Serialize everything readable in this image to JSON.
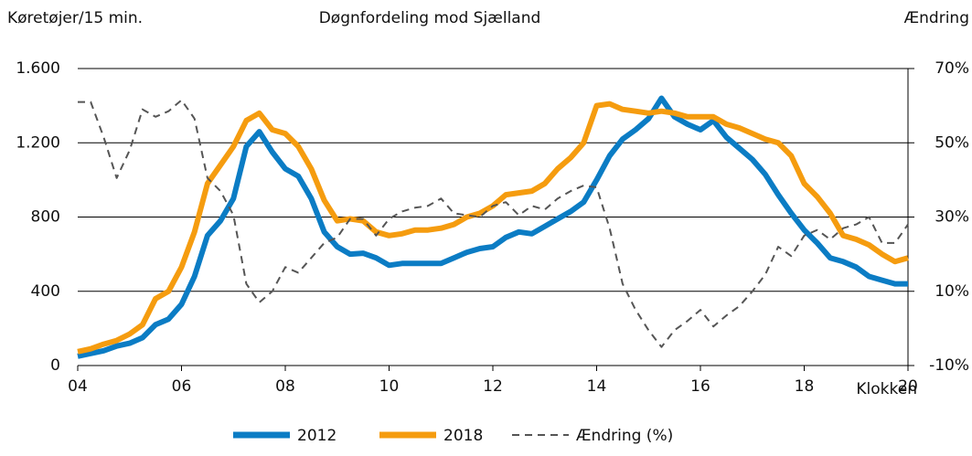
{
  "chart_data": {
    "type": "line",
    "title": "Døgnfordeling mod Sjælland",
    "ylabel": "Køretøjer/15 min.",
    "y2label": "Ændring",
    "xlabel": "Klokken",
    "x": [
      4,
      4.25,
      4.5,
      4.75,
      5,
      5.25,
      5.5,
      5.75,
      6,
      6.25,
      6.5,
      6.75,
      7,
      7.25,
      7.5,
      7.75,
      8,
      8.25,
      8.5,
      8.75,
      9,
      9.25,
      9.5,
      9.75,
      10,
      10.25,
      10.5,
      10.75,
      11,
      11.25,
      11.5,
      11.75,
      12,
      12.25,
      12.5,
      12.75,
      13,
      13.25,
      13.5,
      13.75,
      14,
      14.25,
      14.5,
      14.75,
      15,
      15.25,
      15.5,
      15.75,
      16,
      16.25,
      16.5,
      16.75,
      17,
      17.25,
      17.5,
      17.75,
      18,
      18.25,
      18.5,
      18.75,
      19,
      19.25,
      19.5,
      19.75,
      20
    ],
    "series": [
      {
        "name": "2012",
        "color": "#0b7cc4",
        "style": "solid",
        "values": [
          50,
          65,
          80,
          105,
          120,
          150,
          220,
          250,
          330,
          480,
          700,
          780,
          900,
          1180,
          1260,
          1150,
          1060,
          1020,
          900,
          720,
          640,
          600,
          605,
          580,
          540,
          550,
          550,
          550,
          550,
          580,
          610,
          630,
          640,
          690,
          720,
          710,
          750,
          790,
          830,
          880,
          1000,
          1130,
          1220,
          1270,
          1330,
          1440,
          1340,
          1300,
          1270,
          1320,
          1230,
          1170,
          1110,
          1030,
          920,
          820,
          730,
          660,
          580,
          560,
          530,
          480,
          460,
          440,
          440
        ]
      },
      {
        "name": "2018",
        "color": "#f59c0f",
        "style": "solid",
        "values": [
          75,
          90,
          115,
          135,
          170,
          220,
          360,
          400,
          530,
          720,
          980,
          1080,
          1180,
          1320,
          1360,
          1270,
          1250,
          1180,
          1060,
          890,
          780,
          790,
          780,
          720,
          700,
          710,
          730,
          730,
          740,
          760,
          800,
          820,
          860,
          920,
          930,
          940,
          980,
          1060,
          1120,
          1200,
          1400,
          1410,
          1380,
          1370,
          1360,
          1370,
          1360,
          1340,
          1340,
          1340,
          1300,
          1280,
          1250,
          1220,
          1200,
          1130,
          980,
          910,
          820,
          700,
          680,
          650,
          600,
          560,
          580
        ]
      },
      {
        "name": "Ændring (%)",
        "color": "#555555",
        "style": "dashed",
        "axis": "y2",
        "values": [
          61,
          61,
          51.5,
          40.5,
          48,
          59,
          57,
          58.5,
          61.5,
          56.5,
          40.5,
          37,
          30.5,
          12,
          7,
          10,
          16.5,
          15,
          19,
          23,
          24.5,
          29.5,
          29.5,
          25,
          29.5,
          31.5,
          32.5,
          33,
          35,
          31,
          30.5,
          30,
          33,
          34,
          30.5,
          33,
          32,
          35,
          37,
          38.5,
          38,
          27,
          12,
          5,
          -0.5,
          -5,
          -0.5,
          2,
          5,
          0.5,
          3.5,
          6,
          10,
          14.5,
          22,
          19.5,
          25,
          26.5,
          24,
          27,
          28,
          30,
          23,
          23,
          28
        ]
      }
    ],
    "xlim": [
      4,
      20
    ],
    "xticks": [
      {
        "value": 4,
        "label": "04"
      },
      {
        "value": 6,
        "label": "06"
      },
      {
        "value": 8,
        "label": "08"
      },
      10,
      12,
      14,
      16,
      18,
      20
    ],
    "ylim": [
      0,
      1600
    ],
    "yticks": [
      0,
      400,
      800,
      {
        "value": 1200,
        "label": "1.200"
      },
      {
        "value": 1600,
        "label": "1.600"
      }
    ],
    "y2lim": [
      -10,
      70
    ],
    "y2ticks": [
      {
        "value": -10,
        "label": "-10%"
      },
      {
        "value": 10,
        "label": "10%"
      },
      {
        "value": 30,
        "label": "30%"
      },
      {
        "value": 50,
        "label": "50%"
      },
      {
        "value": 70,
        "label": "70%"
      }
    ],
    "grid": true,
    "legend": "bottom"
  }
}
